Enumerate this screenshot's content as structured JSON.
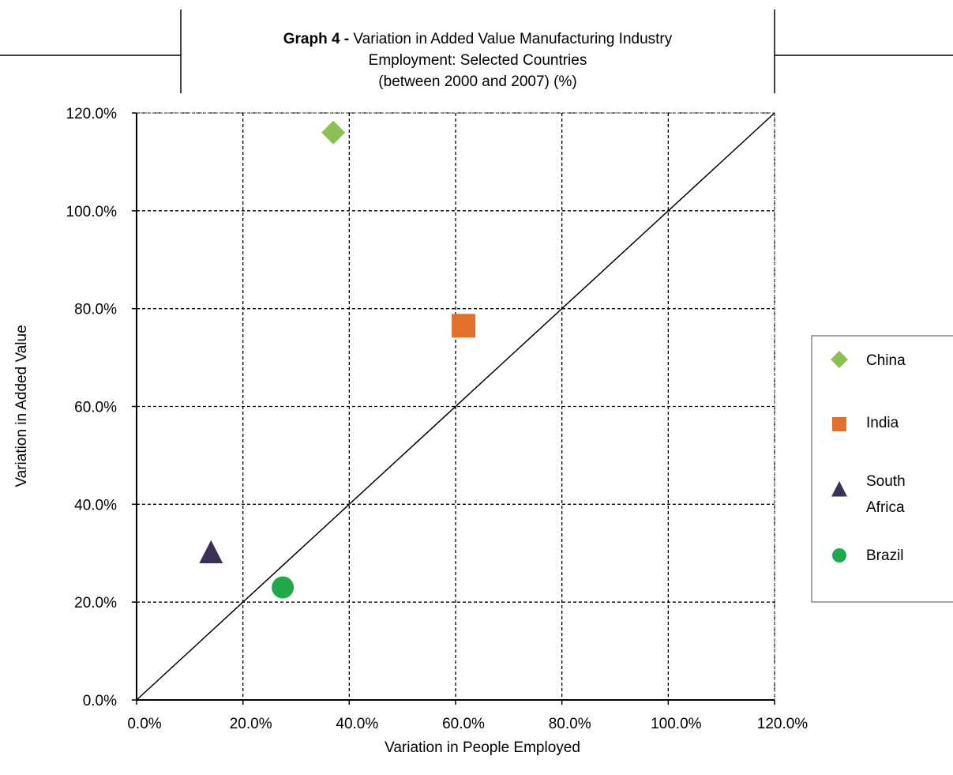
{
  "title": {
    "prefix": "Graph 4 - ",
    "line1": "Variation in Added Value Manufacturing Industry",
    "line2": "Employment: Selected Countries",
    "line3": "(between 2000 and 2007) (%)"
  },
  "chart_data": {
    "type": "scatter",
    "xlabel": "Variation in People Employed",
    "ylabel": "Variation in Added Value",
    "xlim": [
      0,
      120
    ],
    "ylim": [
      0,
      120
    ],
    "x_ticks": [
      "0.0%",
      "20.0%",
      "40.0%",
      "60.0%",
      "80.0%",
      "100.0%",
      "120.0%"
    ],
    "y_ticks": [
      "0.0%",
      "20.0%",
      "40.0%",
      "60.0%",
      "80.0%",
      "100.0%",
      "120.0%"
    ],
    "grid": true,
    "reference_line": {
      "from": [
        0,
        0
      ],
      "to": [
        120,
        120
      ]
    },
    "legend_position": "right",
    "series": [
      {
        "name": "China",
        "marker": "diamond",
        "color": "#8cc152",
        "x": 37.0,
        "y": 116.0
      },
      {
        "name": "India",
        "marker": "square",
        "color": "#e0702a",
        "x": 61.5,
        "y": 76.5
      },
      {
        "name": "South Africa",
        "marker": "triangle",
        "color": "#3b3156",
        "x": 14.0,
        "y": 30.0
      },
      {
        "name": "Brazil",
        "marker": "circle",
        "color": "#21a84a",
        "x": 27.5,
        "y": 23.0
      }
    ]
  }
}
